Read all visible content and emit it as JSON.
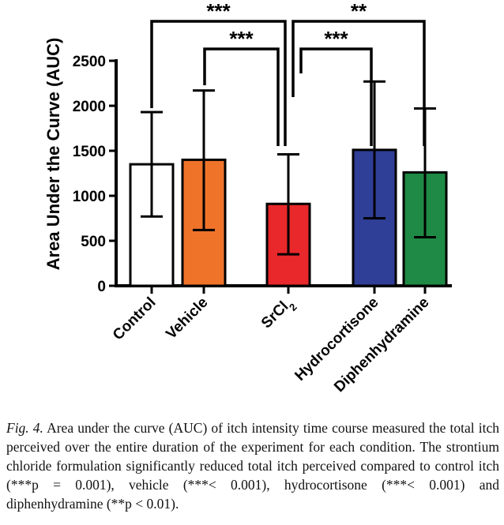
{
  "chart_data": {
    "type": "bar",
    "categories": [
      "Control",
      "Vehicle",
      "SrCl2",
      "Hydrocortisone",
      "Diphenhydramine"
    ],
    "category_label_parts": [
      [
        "Control"
      ],
      [
        "Vehicle"
      ],
      [
        "SrCl",
        "2"
      ],
      [
        "Hydrocortisone"
      ],
      [
        "Diphenhydramine"
      ]
    ],
    "values": [
      1350,
      1400,
      910,
      1510,
      1260
    ],
    "error_upper": [
      1930,
      2170,
      1460,
      2270,
      1970
    ],
    "error_lower": [
      770,
      620,
      350,
      750,
      540
    ],
    "colors": [
      "#ffffff",
      "#f0732a",
      "#e8282a",
      "#2f3e96",
      "#1f8a45"
    ],
    "ylabel": "Area Under the Curve  (AUC)",
    "ylim": [
      0,
      2500
    ],
    "yticks": [
      0,
      500,
      1000,
      1500,
      2000,
      2500
    ],
    "grid": false,
    "significance": [
      {
        "from": "Control",
        "to": "SrCl2",
        "label": "***"
      },
      {
        "from": "Vehicle",
        "to": "SrCl2",
        "label": "***"
      },
      {
        "from": "SrCl2",
        "to": "Diphenhydramine",
        "label": "**"
      },
      {
        "from": "SrCl2",
        "to": "Hydrocortisone",
        "label": "***"
      }
    ]
  },
  "caption": {
    "fig_label": "Fig. 4.",
    "text": " Area under the curve (AUC) of itch intensity time course measured the total itch perceived over the entire duration of the experiment for each condition. The strontium chloride formulation significantly reduced total itch perceived compared to control itch (***p = 0.001), vehicle (***< 0.001), hydrocortisone (***< 0.001) and diphenhydramine (**p < 0.01)."
  }
}
